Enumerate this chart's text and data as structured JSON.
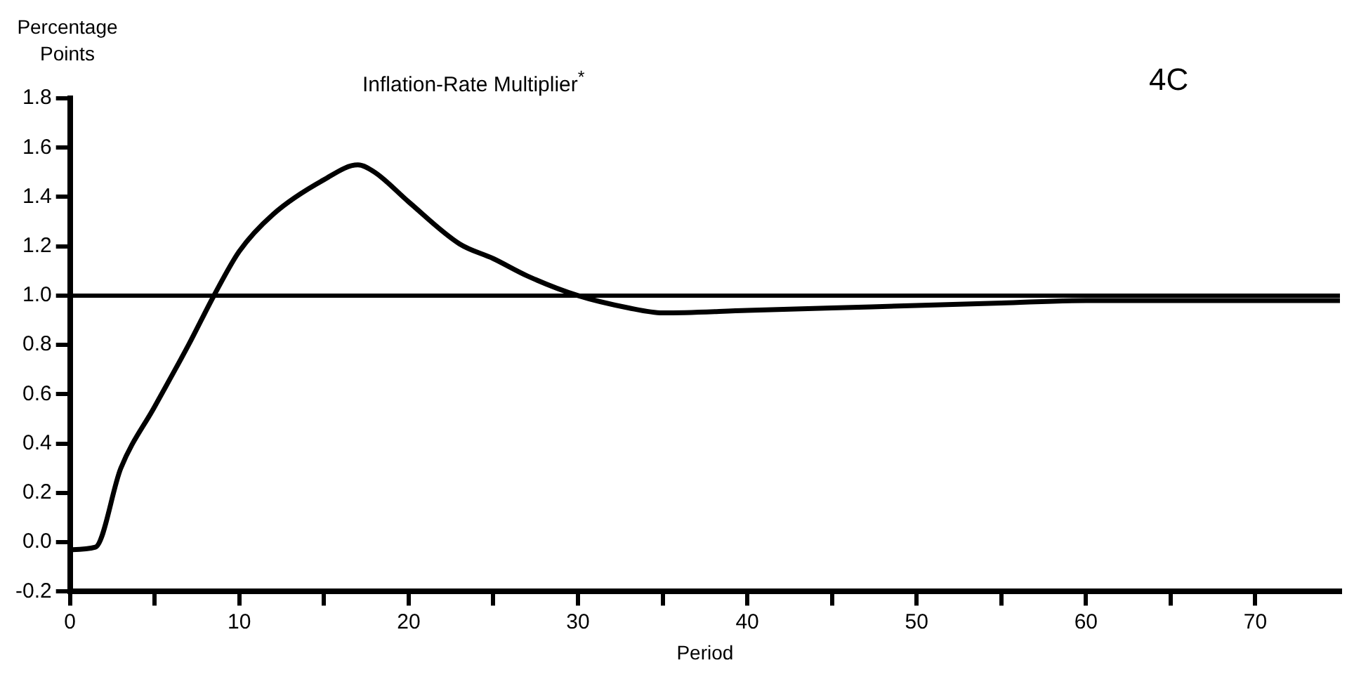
{
  "chart_data": {
    "type": "line",
    "title": "Inflation-Rate Multiplier$^{*}$",
    "xlabel": "Period",
    "ylabel": "Percentage Points",
    "annotations": [
      "4C"
    ],
    "x": [
      0,
      1.5,
      3,
      5,
      7,
      8.5,
      10,
      12,
      15,
      17,
      18,
      20,
      23,
      25,
      27,
      30,
      33,
      35,
      40,
      45,
      50,
      55,
      60,
      65,
      70,
      75
    ],
    "series": [
      {
        "color": "#000000",
        "values": [
          -0.03,
          -0.02,
          0.3,
          0.55,
          0.8,
          1.0,
          1.18,
          1.33,
          1.47,
          1.53,
          1.5,
          1.38,
          1.21,
          1.15,
          1.08,
          1.0,
          0.95,
          0.93,
          0.94,
          0.95,
          0.96,
          0.97,
          0.98,
          0.98,
          0.98,
          0.98
        ]
      }
    ],
    "xlim": [
      0,
      75
    ],
    "ylim": [
      -0.2,
      1.8
    ],
    "xticks": [
      0,
      {
        "value": 5,
        "label": null
      },
      10,
      {
        "value": 15,
        "label": null
      },
      20,
      {
        "value": 25,
        "label": null
      },
      30,
      {
        "value": 35,
        "label": null
      },
      40,
      {
        "value": 45,
        "label": null
      },
      50,
      {
        "value": 55,
        "label": null
      },
      60,
      {
        "value": 65,
        "label": null
      },
      70
    ],
    "yticks": [
      -0.2,
      {
        "value": 0,
        "label": "0.0"
      },
      0.2,
      0.4,
      0.6,
      0.8,
      {
        "value": 1,
        "label": "1.0"
      },
      1.2,
      1.4,
      1.6,
      1.8
    ],
    "ref_lines": [
      {
        "axis": "y",
        "value": 1,
        "color": "#000000"
      }
    ],
    "grid": false,
    "legend": false,
    "marker": "none",
    "line_style": "solid"
  }
}
